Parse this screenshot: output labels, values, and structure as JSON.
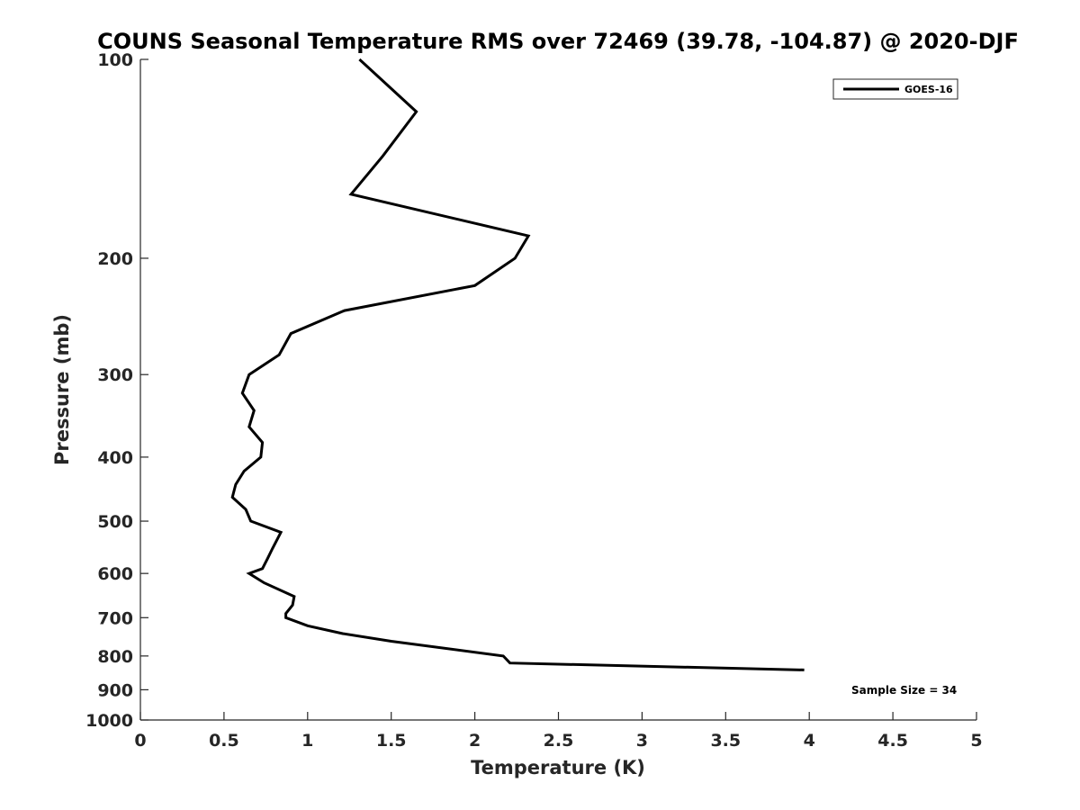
{
  "chart_data": {
    "type": "line",
    "title": "COUNS Seasonal Temperature RMS over 72469 (39.78, -104.87) @ 2020-DJF",
    "xlabel": "Temperature (K)",
    "ylabel": "Pressure (mb)",
    "xlim": [
      0,
      5
    ],
    "ylim": [
      100,
      1000
    ],
    "yscale": "log",
    "y_reversed": true,
    "grid": false,
    "x_ticks": [
      0,
      0.5,
      1,
      1.5,
      2,
      2.5,
      3,
      3.5,
      4,
      4.5,
      5
    ],
    "x_tick_labels": [
      "0",
      "0.5",
      "1",
      "1.5",
      "2",
      "2.5",
      "3",
      "3.5",
      "4",
      "4.5",
      "5"
    ],
    "y_ticks": [
      100,
      200,
      300,
      400,
      500,
      600,
      700,
      800,
      900,
      1000
    ],
    "y_tick_labels": [
      "100",
      "200",
      "300",
      "400",
      "500",
      "600",
      "700",
      "800",
      "900",
      "1000"
    ],
    "legend_position": "top-right",
    "series": [
      {
        "name": "GOES-16",
        "color": "#000000",
        "x": [
          1.31,
          1.65,
          1.45,
          1.26,
          2.32,
          2.24,
          2.0,
          1.22,
          0.9,
          0.83,
          0.65,
          0.61,
          0.68,
          0.65,
          0.73,
          0.72,
          0.62,
          0.57,
          0.55,
          0.63,
          0.66,
          0.84,
          0.79,
          0.76,
          0.73,
          0.65,
          0.74,
          0.92,
          0.91,
          0.87,
          0.87,
          1.0,
          1.21,
          1.5,
          2.17,
          2.21,
          3.97
        ],
        "y": [
          100,
          120,
          140,
          160,
          185,
          200,
          220,
          240,
          260,
          280,
          300,
          320,
          340,
          360,
          380,
          400,
          420,
          440,
          460,
          480,
          500,
          520,
          550,
          570,
          590,
          600,
          620,
          650,
          670,
          690,
          700,
          720,
          740,
          760,
          800,
          820,
          840
        ]
      }
    ],
    "annotations": [
      "Sample Size = 34"
    ]
  }
}
